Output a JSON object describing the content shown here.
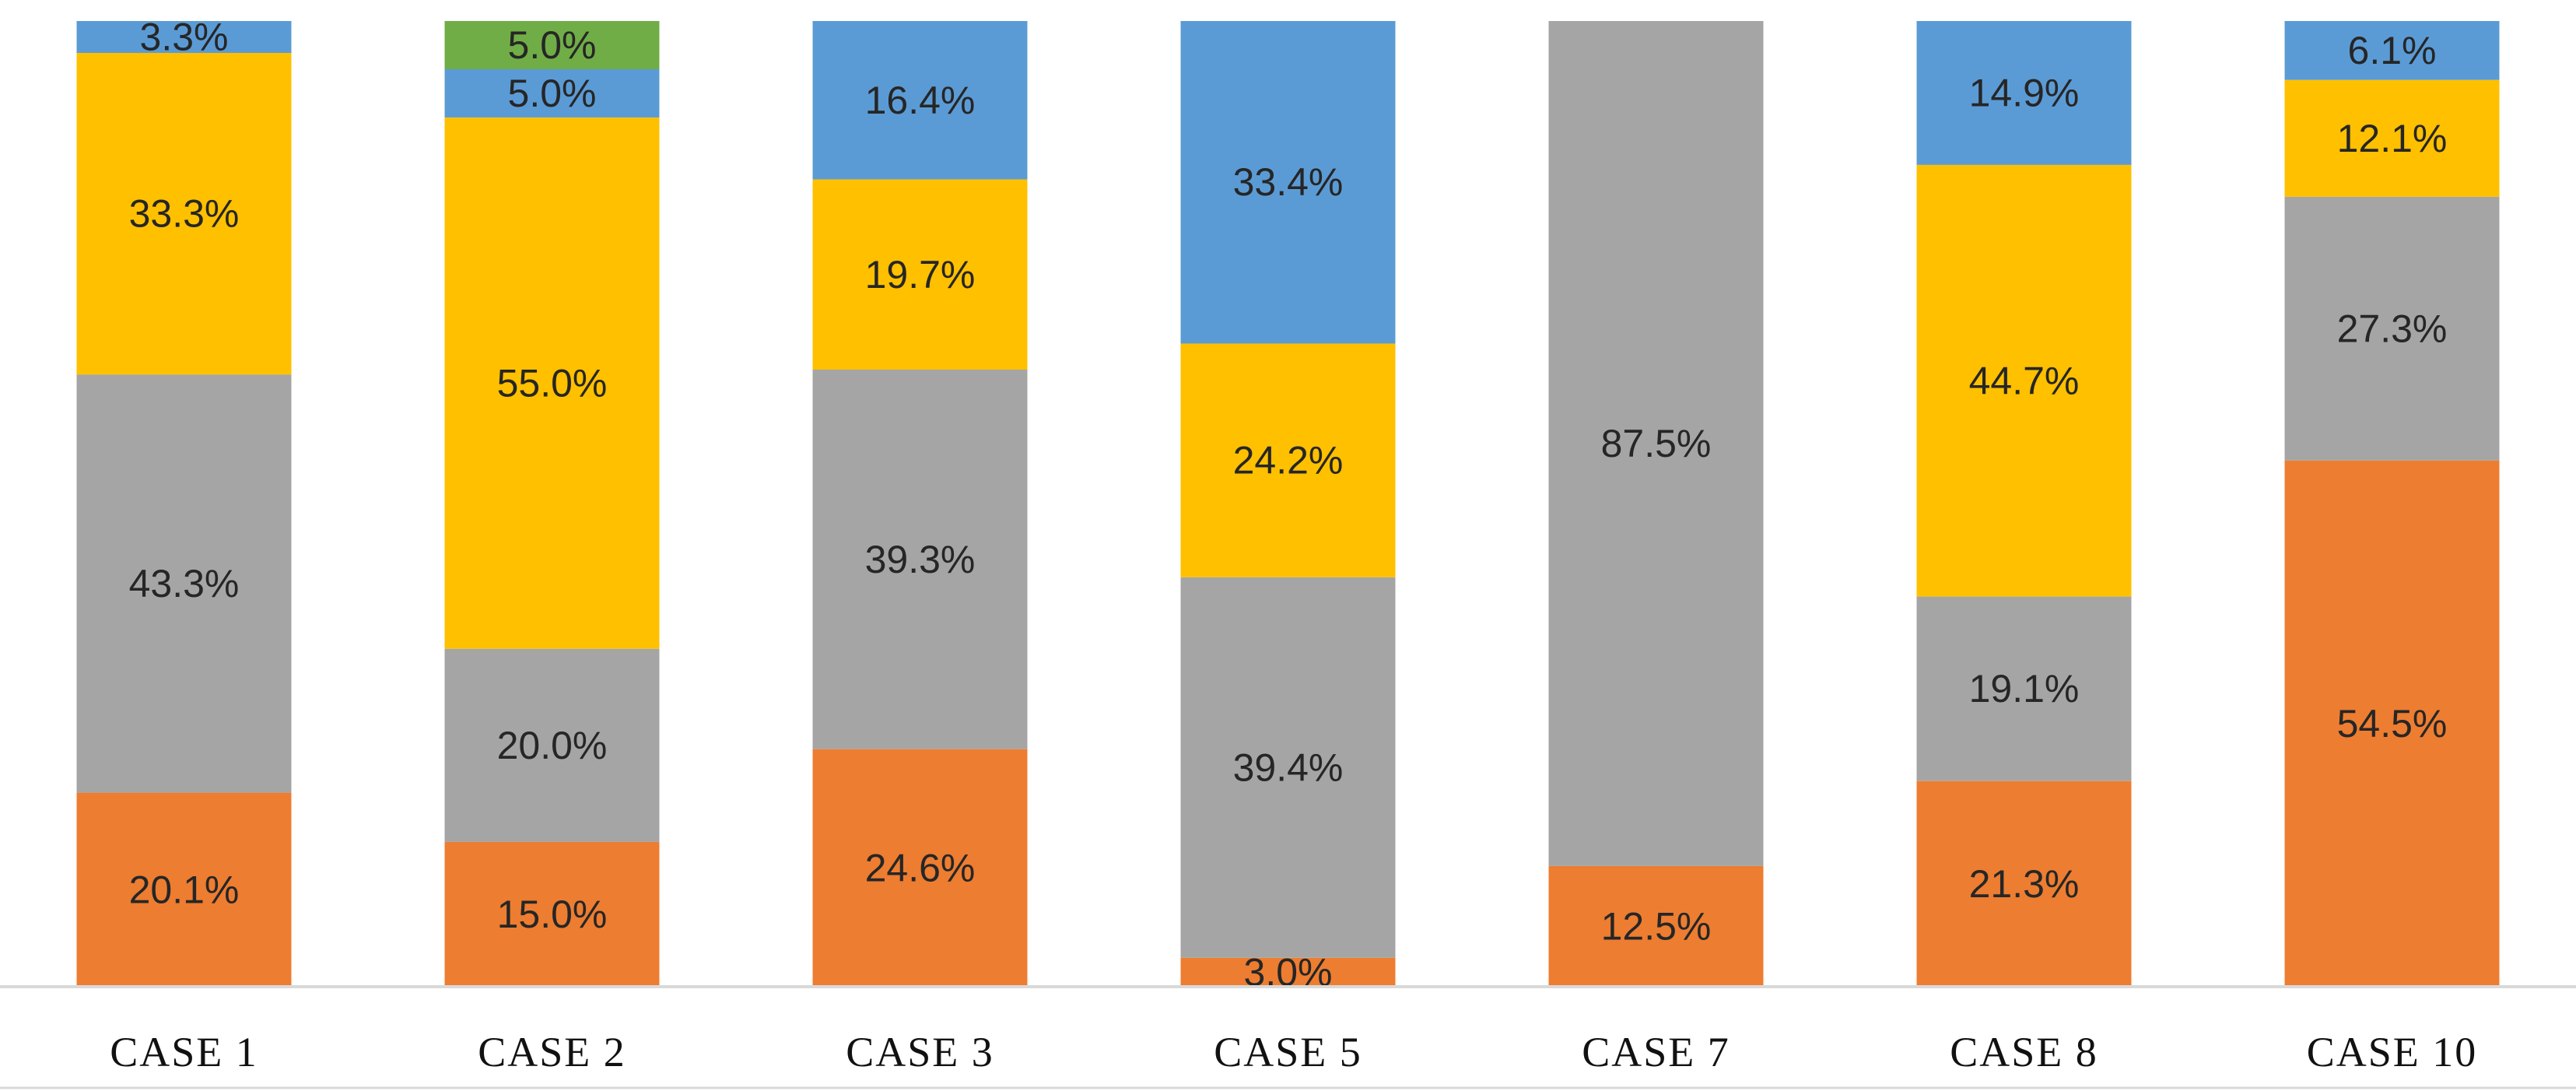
{
  "chart_data": {
    "type": "bar",
    "stacked": true,
    "normalized": true,
    "title": "",
    "xlabel": "",
    "ylabel": "",
    "ylim": [
      0,
      100
    ],
    "grid": false,
    "legend": "none",
    "categories": [
      "CASE 1",
      "CASE 2",
      "CASE 3",
      "CASE 5",
      "CASE 7",
      "CASE 8",
      "CASE 10"
    ],
    "series": [
      {
        "color": "#ED7D31",
        "values": [
          20.1,
          15.0,
          24.6,
          3.0,
          12.5,
          21.3,
          54.5
        ],
        "labels": [
          "20.1%",
          "15.0%",
          "24.6%",
          "3.0%",
          "12.5%",
          "21.3%",
          "54.5%"
        ]
      },
      {
        "color": "#A5A5A5",
        "values": [
          43.3,
          20.0,
          39.3,
          39.4,
          87.5,
          19.1,
          27.3
        ],
        "labels": [
          "43.3%",
          "20.0%",
          "39.3%",
          "39.4%",
          "87.5%",
          "19.1%",
          "27.3%"
        ]
      },
      {
        "color": "#FFC000",
        "values": [
          33.3,
          55.0,
          19.7,
          24.2,
          0,
          44.7,
          12.1
        ],
        "labels": [
          "33.3%",
          "55.0%",
          "19.7%",
          "24.2%",
          "",
          "44.7%",
          "12.1%"
        ]
      },
      {
        "color": "#5B9BD5",
        "values": [
          3.3,
          5.0,
          16.4,
          33.4,
          0,
          14.9,
          6.1
        ],
        "labels": [
          "3.3%",
          "5.0%",
          "16.4%",
          "33.4%",
          "",
          "14.9%",
          "6.1%"
        ]
      },
      {
        "color": "#70AD47",
        "values": [
          0,
          5.0,
          0,
          0,
          0,
          0,
          0
        ],
        "labels": [
          "",
          "5.0%",
          "",
          "",
          "",
          "",
          ""
        ]
      }
    ],
    "axis_color": "#D9D9D9"
  }
}
